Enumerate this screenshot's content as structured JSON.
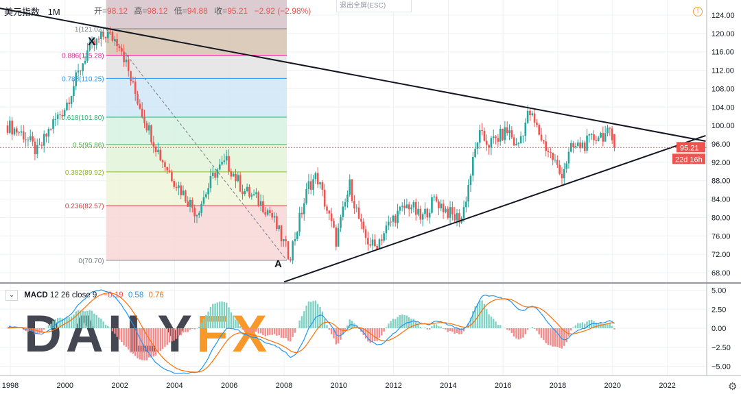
{
  "header": {
    "symbol": "美元指数",
    "timeframe": "1M",
    "ohlc": [
      {
        "label": "开=",
        "value": "98.12"
      },
      {
        "label": "高=",
        "value": "98.12"
      },
      {
        "label": "低=",
        "value": "94.88"
      },
      {
        "label": "收=",
        "value": "95.21"
      }
    ],
    "change": "−2.92 (−2.98%)"
  },
  "exit_fullscreen": "退出全屏(ESC)",
  "icons": {
    "warning": "warning-circle-icon",
    "settings": "gear-icon",
    "collapse": "chevron-down-icon"
  },
  "watermark": {
    "text_dark": "DAILY",
    "text_accent": "FX",
    "dark": "#3a3e48",
    "accent": "#f7931e"
  },
  "colors": {
    "up": "#26a69a",
    "down": "#ef5350",
    "macd": "#2196f3",
    "signal": "#ff6d00",
    "trend": "#131722"
  },
  "macd": {
    "title": "MACD",
    "params": "12 26 close 9",
    "hist": "−0.19",
    "macd": "0.58",
    "signal": "0.76",
    "ticks": [
      "5.00",
      "2.50",
      "0.00",
      "−2.50",
      "−5.00"
    ],
    "tick_values": [
      5,
      2.5,
      0,
      -2.5,
      -5
    ]
  },
  "price_label": "95.21",
  "countdown": "22d 16h",
  "annotations": {
    "x": "X",
    "a": "A"
  },
  "chart_data": {
    "type": "candlestick",
    "title": "美元指数 1M",
    "ylim": [
      66,
      126
    ],
    "y_ticks": [
      "124.00",
      "120.00",
      "116.00",
      "112.00",
      "108.00",
      "104.00",
      "100.00",
      "96.00",
      "92.00",
      "88.00",
      "84.00",
      "80.00",
      "76.00",
      "72.00",
      "68.00"
    ],
    "y_tick_values": [
      124,
      120,
      116,
      112,
      108,
      104,
      100,
      96,
      92,
      88,
      84,
      80,
      76,
      72,
      68
    ],
    "x_ticks": [
      "1998",
      "2000",
      "2002",
      "2004",
      "2006",
      "2008",
      "2010",
      "2012",
      "2014",
      "2016",
      "2018",
      "2020",
      "2022"
    ],
    "x_tick_values": [
      1998,
      2000,
      2002,
      2004,
      2006,
      2008,
      2010,
      2012,
      2014,
      2016,
      2018,
      2020,
      2022
    ],
    "grid": true,
    "close_series_approx": [
      [
        1997.9,
        100
      ],
      [
        1998.5,
        98
      ],
      [
        1999,
        94
      ],
      [
        1999.5,
        100
      ],
      [
        2000,
        104
      ],
      [
        2000.8,
        116
      ],
      [
        2001.5,
        120
      ],
      [
        2002,
        118
      ],
      [
        2002.5,
        108
      ],
      [
        2003,
        100
      ],
      [
        2003.5,
        93
      ],
      [
        2004,
        88
      ],
      [
        2004.8,
        81
      ],
      [
        2005.5,
        90
      ],
      [
        2005.9,
        92
      ],
      [
        2006.5,
        86
      ],
      [
        2007,
        84
      ],
      [
        2007.5,
        81
      ],
      [
        2008.2,
        71.5
      ],
      [
        2008.9,
        87
      ],
      [
        2009.2,
        89
      ],
      [
        2009.9,
        75
      ],
      [
        2010.4,
        87
      ],
      [
        2010.9,
        76
      ],
      [
        2011.3,
        73.5
      ],
      [
        2012,
        80
      ],
      [
        2012.6,
        83
      ],
      [
        2013,
        79.5
      ],
      [
        2013.5,
        84
      ],
      [
        2014.2,
        80
      ],
      [
        2014.5,
        80
      ],
      [
        2015.1,
        98
      ],
      [
        2015.5,
        96
      ],
      [
        2016.2,
        99
      ],
      [
        2016.5,
        95
      ],
      [
        2016.95,
        103
      ],
      [
        2017.5,
        96
      ],
      [
        2017.9,
        92
      ],
      [
        2018.1,
        89
      ],
      [
        2018.5,
        95
      ],
      [
        2019,
        96
      ],
      [
        2019.5,
        98
      ],
      [
        2019.9,
        98
      ],
      [
        2020.1,
        95.21
      ]
    ],
    "last_price": 95.21,
    "fibonacci": {
      "start_year": 2001.5,
      "end_year": 2008.1,
      "levels": [
        {
          "ratio": 1,
          "price": 121.02,
          "label": "1(121.02)",
          "color": "#787b86",
          "fill": "#d6c3b0"
        },
        {
          "ratio": 0.886,
          "price": 115.28,
          "label": "0.886(115.28)",
          "color": "#e91e8c",
          "fill": "#e3e3e3"
        },
        {
          "ratio": 0.786,
          "price": 110.25,
          "label": "0.786(110.25)",
          "color": "#2196f3",
          "fill": "#cfe6f6"
        },
        {
          "ratio": 0.618,
          "price": 101.8,
          "label": "0.618(101.80)",
          "color": "#1fb86a",
          "fill": "#d6f2e1"
        },
        {
          "ratio": 0.5,
          "price": 95.86,
          "label": "0.5(95.86)",
          "color": "#4caf50",
          "fill": "#e2f4d8"
        },
        {
          "ratio": 0.382,
          "price": 89.92,
          "label": "0.382(89.92)",
          "color": "#8bb81f",
          "fill": "#eef5d9"
        },
        {
          "ratio": 0.236,
          "price": 82.57,
          "label": "0.236(82.57)",
          "color": "#e53935",
          "fill": "#f8d6d6"
        },
        {
          "ratio": 0,
          "price": 70.7,
          "label": "0(70.70)",
          "color": "#787b86",
          "fill": ""
        }
      ],
      "top_fill": "#d8c6cc"
    },
    "trendlines": [
      {
        "name": "upper",
        "from": [
          1997.6,
          125.5
        ],
        "to": [
          2023.4,
          96.6
        ]
      },
      {
        "name": "lower",
        "from": [
          2008.0,
          66.0
        ],
        "to": [
          2023.4,
          97.8
        ]
      }
    ]
  }
}
